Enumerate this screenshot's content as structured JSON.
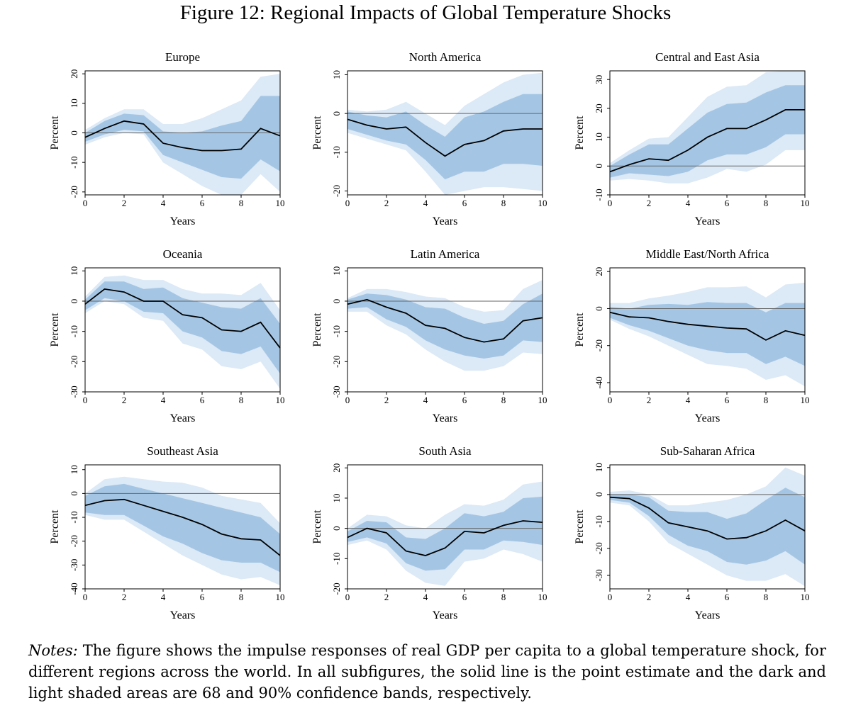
{
  "title": "Figure 12: Regional Impacts of Global Temperature Shocks",
  "notes": {
    "label": "Notes:",
    "text": "The figure shows the impulse responses of real GDP per capita to a global temperature shock, for different regions across the world. In all subfigures, the solid line is the point estimate and the dark and light shaded areas are 68 and 90% confidence bands, respectively."
  },
  "colors": {
    "band90": "#dce9f6",
    "band68": "#a4c6e4",
    "line": "#000000",
    "zero": "#666666"
  },
  "chart_data": [
    {
      "type": "line",
      "title": "Europe",
      "xlabel": "Years",
      "ylabel": "Percent",
      "xlim": [
        0,
        10
      ],
      "ylim": [
        -21,
        21
      ],
      "xticks": [
        0,
        2,
        4,
        6,
        8,
        10
      ],
      "yticks": [
        -20,
        -10,
        0,
        10,
        20
      ],
      "x": [
        0,
        1,
        2,
        3,
        4,
        5,
        6,
        7,
        8,
        9,
        10
      ],
      "point_estimate": [
        -1.5,
        1.5,
        4,
        3,
        -3.5,
        -5,
        -6,
        -6,
        -5.5,
        1.5,
        -1
      ],
      "band68": {
        "lower": [
          -3,
          -0.5,
          1,
          0.5,
          -7.5,
          -10,
          -12.5,
          -15,
          -15.5,
          -9,
          -13
        ],
        "upper": [
          0,
          4,
          6.5,
          6,
          0.5,
          0,
          0.5,
          2.5,
          4,
          12.5,
          12.5
        ]
      },
      "band90": {
        "lower": [
          -4,
          -1.5,
          0,
          -0.5,
          -10,
          -14,
          -18,
          -21,
          -21,
          -14,
          -20
        ],
        "upper": [
          1,
          5,
          8,
          8,
          3,
          3,
          5,
          8,
          11,
          19,
          20
        ]
      }
    },
    {
      "type": "line",
      "title": "North America",
      "xlabel": "Years",
      "ylabel": "Percent",
      "xlim": [
        0,
        10
      ],
      "ylim": [
        -21,
        11
      ],
      "xticks": [
        0,
        2,
        4,
        6,
        8,
        10
      ],
      "yticks": [
        -20,
        -10,
        0,
        10
      ],
      "x": [
        0,
        1,
        2,
        3,
        4,
        5,
        6,
        7,
        8,
        9,
        10
      ],
      "point_estimate": [
        -1.5,
        -3,
        -4,
        -3.5,
        -7.5,
        -11,
        -8,
        -7,
        -4.5,
        -4,
        -4
      ],
      "band68": {
        "lower": [
          -4,
          -5.5,
          -7,
          -8,
          -12,
          -17,
          -15,
          -15,
          -13,
          -13,
          -13.5
        ],
        "upper": [
          0.5,
          -0.5,
          -1,
          0.5,
          -3,
          -6,
          -1,
          0.5,
          3,
          5,
          5
        ]
      },
      "band90": {
        "lower": [
          -5,
          -6.5,
          -8,
          -9.5,
          -15,
          -21,
          -20,
          -19,
          -19,
          -19.5,
          -20
        ],
        "upper": [
          1,
          0.5,
          1,
          3,
          0,
          -3,
          2,
          5,
          8,
          10,
          10.5
        ]
      }
    },
    {
      "type": "line",
      "title": "Central and East Asia",
      "xlabel": "Years",
      "ylabel": "Percent",
      "xlim": [
        0,
        10
      ],
      "ylim": [
        -10,
        33
      ],
      "xticks": [
        0,
        2,
        4,
        6,
        8,
        10
      ],
      "yticks": [
        -10,
        0,
        10,
        20,
        30
      ],
      "x": [
        0,
        1,
        2,
        3,
        4,
        5,
        6,
        7,
        8,
        9,
        10
      ],
      "point_estimate": [
        -2,
        0.5,
        2.5,
        2,
        5.5,
        10,
        13,
        13,
        16,
        19.5,
        19.5
      ],
      "band68": {
        "lower": [
          -4,
          -2.5,
          -3,
          -3.5,
          -2,
          2,
          4,
          4,
          6.5,
          11,
          11
        ],
        "upper": [
          0,
          4,
          7.5,
          7.5,
          13,
          18.5,
          21.5,
          22,
          25.5,
          28,
          28
        ]
      },
      "band90": {
        "lower": [
          -5,
          -4.5,
          -5,
          -6,
          -6,
          -4,
          -1,
          -2,
          0.5,
          5.5,
          5.5
        ],
        "upper": [
          1,
          5.5,
          9.5,
          10,
          17,
          24,
          27.5,
          28,
          32.5,
          33,
          33
        ]
      }
    },
    {
      "type": "line",
      "title": "Oceania",
      "xlabel": "Years",
      "ylabel": "Percent",
      "xlim": [
        0,
        10
      ],
      "ylim": [
        -30,
        11
      ],
      "xticks": [
        0,
        2,
        4,
        6,
        8,
        10
      ],
      "yticks": [
        -30,
        -20,
        -10,
        0,
        10
      ],
      "x": [
        0,
        1,
        2,
        3,
        4,
        5,
        6,
        7,
        8,
        9,
        10
      ],
      "point_estimate": [
        -1,
        4,
        3,
        0,
        0,
        -4.5,
        -5.5,
        -9.5,
        -10,
        -7,
        -15.5
      ],
      "band68": {
        "lower": [
          -3,
          1,
          0,
          -3.5,
          -4,
          -10,
          -12,
          -16.5,
          -17.5,
          -15,
          -24
        ],
        "upper": [
          0.5,
          6.5,
          6.5,
          4,
          4.5,
          1,
          -0.5,
          -2,
          -2.5,
          1,
          -7.5
        ]
      },
      "band90": {
        "lower": [
          -4,
          0,
          -1,
          -5.5,
          -6.5,
          -14,
          -16,
          -21.5,
          -22.5,
          -20,
          -29
        ],
        "upper": [
          1.5,
          8,
          8.5,
          7,
          7,
          4,
          2.5,
          2.5,
          2,
          6,
          -3
        ]
      }
    },
    {
      "type": "line",
      "title": "Latin America",
      "xlabel": "Years",
      "ylabel": "Percent",
      "xlim": [
        0,
        10
      ],
      "ylim": [
        -30,
        11
      ],
      "xticks": [
        0,
        2,
        4,
        6,
        8,
        10
      ],
      "yticks": [
        -30,
        -20,
        -10,
        0,
        10
      ],
      "x": [
        0,
        1,
        2,
        3,
        4,
        5,
        6,
        7,
        8,
        9,
        10
      ],
      "point_estimate": [
        -1,
        0.5,
        -2,
        -4,
        -8,
        -9,
        -12,
        -13.5,
        -12.5,
        -6.5,
        -5.5
      ],
      "band68": {
        "lower": [
          -2.5,
          -2,
          -6,
          -8.5,
          -13,
          -16,
          -18,
          -19,
          -18,
          -13,
          -13.5
        ],
        "upper": [
          0.5,
          2.5,
          2,
          0.5,
          -2,
          -2.5,
          -5.5,
          -7.5,
          -6.5,
          -1,
          2.5
        ]
      },
      "band90": {
        "lower": [
          -3.5,
          -3.5,
          -8,
          -11,
          -16,
          -20,
          -23,
          -23,
          -21.5,
          -17,
          -17.5
        ],
        "upper": [
          1,
          4,
          4,
          3,
          1.5,
          1,
          -2,
          -3.5,
          -3,
          4,
          7
        ]
      }
    },
    {
      "type": "line",
      "title": "Middle East/North Africa",
      "xlabel": "Years",
      "ylabel": "Percent",
      "xlim": [
        0,
        10
      ],
      "ylim": [
        -45,
        22
      ],
      "xticks": [
        0,
        2,
        4,
        6,
        8,
        10
      ],
      "yticks": [
        -40,
        -20,
        0,
        20
      ],
      "x": [
        0,
        1,
        2,
        3,
        4,
        5,
        6,
        7,
        8,
        9,
        10
      ],
      "point_estimate": [
        -2,
        -4.5,
        -5,
        -7,
        -8.5,
        -9.5,
        -10.5,
        -11,
        -17,
        -12,
        -14.5
      ],
      "band68": {
        "lower": [
          -5,
          -9,
          -12,
          -16,
          -20,
          -22.5,
          -24,
          -24,
          -30,
          -26,
          -31
        ],
        "upper": [
          1,
          0,
          2,
          2.5,
          2,
          3.5,
          3,
          3,
          -2,
          3,
          3
        ]
      },
      "band90": {
        "lower": [
          -6,
          -11,
          -15,
          -20,
          -25,
          -30,
          -31,
          -32.5,
          -38.5,
          -36,
          -42
        ],
        "upper": [
          3,
          3,
          5.5,
          7,
          9,
          11.5,
          11.5,
          12,
          6,
          13,
          14
        ]
      }
    },
    {
      "type": "line",
      "title": "Southeast Asia",
      "xlabel": "Years",
      "ylabel": "Percent",
      "xlim": [
        0,
        10
      ],
      "ylim": [
        -40,
        12
      ],
      "xticks": [
        0,
        2,
        4,
        6,
        8,
        10
      ],
      "yticks": [
        -40,
        -30,
        -20,
        -10,
        0,
        10
      ],
      "x": [
        0,
        1,
        2,
        3,
        4,
        5,
        6,
        7,
        8,
        9,
        10
      ],
      "point_estimate": [
        -5,
        -3,
        -2.5,
        -5,
        -7.5,
        -10,
        -13,
        -17,
        -19,
        -19.5,
        -26
      ],
      "band68": {
        "lower": [
          -8,
          -9,
          -9,
          -13.5,
          -18,
          -21,
          -25,
          -28,
          -29,
          -29,
          -33
        ],
        "upper": [
          -1,
          3,
          4,
          2,
          0,
          -2,
          -4,
          -6,
          -8,
          -10,
          -17
        ]
      },
      "band90": {
        "lower": [
          -9,
          -11,
          -11,
          -16,
          -21,
          -26,
          -30,
          -34,
          -36,
          -35,
          -38.5
        ],
        "upper": [
          0,
          6,
          7,
          6,
          5,
          4.5,
          2.5,
          -1,
          -2.5,
          -4,
          -12.5
        ]
      }
    },
    {
      "type": "line",
      "title": "South Asia",
      "xlabel": "Years",
      "ylabel": "Percent",
      "xlim": [
        0,
        10
      ],
      "ylim": [
        -20,
        21
      ],
      "xticks": [
        0,
        2,
        4,
        6,
        8,
        10
      ],
      "yticks": [
        -20,
        -10,
        0,
        10,
        20
      ],
      "x": [
        0,
        1,
        2,
        3,
        4,
        5,
        6,
        7,
        8,
        9,
        10
      ],
      "point_estimate": [
        -3,
        0,
        -1.5,
        -7.5,
        -9,
        -6.5,
        -1,
        -1.5,
        1,
        2.5,
        2
      ],
      "band68": {
        "lower": [
          -4.5,
          -3,
          -5,
          -11.5,
          -14,
          -13.5,
          -7,
          -7,
          -4,
          -4.5,
          -5.5
        ],
        "upper": [
          -1,
          2.5,
          2,
          -3,
          -3.5,
          0,
          5,
          4,
          5.5,
          10,
          10.5
        ]
      },
      "band90": {
        "lower": [
          -5.5,
          -4,
          -7,
          -14,
          -18,
          -19,
          -11,
          -10,
          -7,
          -8.5,
          -11
        ],
        "upper": [
          0,
          4.5,
          4,
          1,
          0,
          4.5,
          8,
          7.5,
          9.5,
          14.5,
          15.5
        ]
      }
    },
    {
      "type": "line",
      "title": "Sub-Saharan Africa",
      "xlabel": "Years",
      "ylabel": "Percent",
      "xlim": [
        0,
        10
      ],
      "ylim": [
        -35,
        11
      ],
      "xticks": [
        0,
        2,
        4,
        6,
        8,
        10
      ],
      "yticks": [
        -30,
        -20,
        -10,
        0,
        10
      ],
      "x": [
        0,
        1,
        2,
        3,
        4,
        5,
        6,
        7,
        8,
        9,
        10
      ],
      "point_estimate": [
        -1,
        -1.5,
        -5,
        -10.5,
        -12,
        -13.5,
        -16.5,
        -16,
        -13.5,
        -9.5,
        -13.5
      ],
      "band68": {
        "lower": [
          -2,
          -3,
          -8,
          -15,
          -19,
          -21,
          -25,
          -26,
          -24.5,
          -21,
          -26
        ],
        "upper": [
          0,
          0,
          -1,
          -6,
          -6.5,
          -6.5,
          -9,
          -7,
          -2,
          2.5,
          -1
        ]
      },
      "band90": {
        "lower": [
          -3,
          -4,
          -10,
          -18,
          -22,
          -26,
          -30,
          -32,
          -32,
          -29.5,
          -34
        ],
        "upper": [
          1,
          1.5,
          0,
          -4,
          -4,
          -3,
          -2,
          0,
          3,
          10,
          7
        ]
      }
    }
  ]
}
